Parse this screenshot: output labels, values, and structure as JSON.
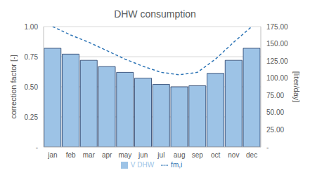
{
  "chart_data": {
    "type": "bar",
    "title": "DHW consumption",
    "categories": [
      "jan",
      "feb",
      "mar",
      "apr",
      "may",
      "jun",
      "jul",
      "aug",
      "sep",
      "oct",
      "nov",
      "dec"
    ],
    "series": [
      {
        "name": "V DHW",
        "type": "bar",
        "color": "#9dc3e6",
        "axis": "y2",
        "values": [
          143.5,
          135,
          126,
          117,
          108.5,
          100,
          91,
          87.5,
          89,
          107,
          126,
          143.5
        ]
      },
      {
        "name": "fm,i",
        "type": "line",
        "color": "#2e75b6",
        "line_style": "dashed",
        "values": [
          1.0,
          0.93,
          0.87,
          0.8,
          0.73,
          0.67,
          0.62,
          0.6,
          0.62,
          0.73,
          0.87,
          1.0
        ]
      }
    ],
    "ylabel": "correction factor [-]",
    "y2label": "[liter/day]",
    "ylim": [
      0,
      1
    ],
    "yticks": [
      {
        "value": 0,
        "label": "-"
      },
      0.25,
      {
        "value": 0.5,
        "label": "0.50"
      },
      0.75,
      {
        "value": 1,
        "label": "1.00"
      }
    ],
    "y2lim": [
      0,
      175
    ],
    "y2ticks": [
      {
        "value": 0,
        "label": "-"
      },
      {
        "value": 25,
        "label": "25.00"
      },
      {
        "value": 50,
        "label": "50.00"
      },
      {
        "value": 75,
        "label": "75.00"
      },
      {
        "value": 100,
        "label": "100.00"
      },
      {
        "value": 125,
        "label": "125.00"
      },
      {
        "value": 150,
        "label": "150.00"
      },
      {
        "value": 175,
        "label": "175.00"
      }
    ],
    "grid": true,
    "legend": "bottom"
  }
}
